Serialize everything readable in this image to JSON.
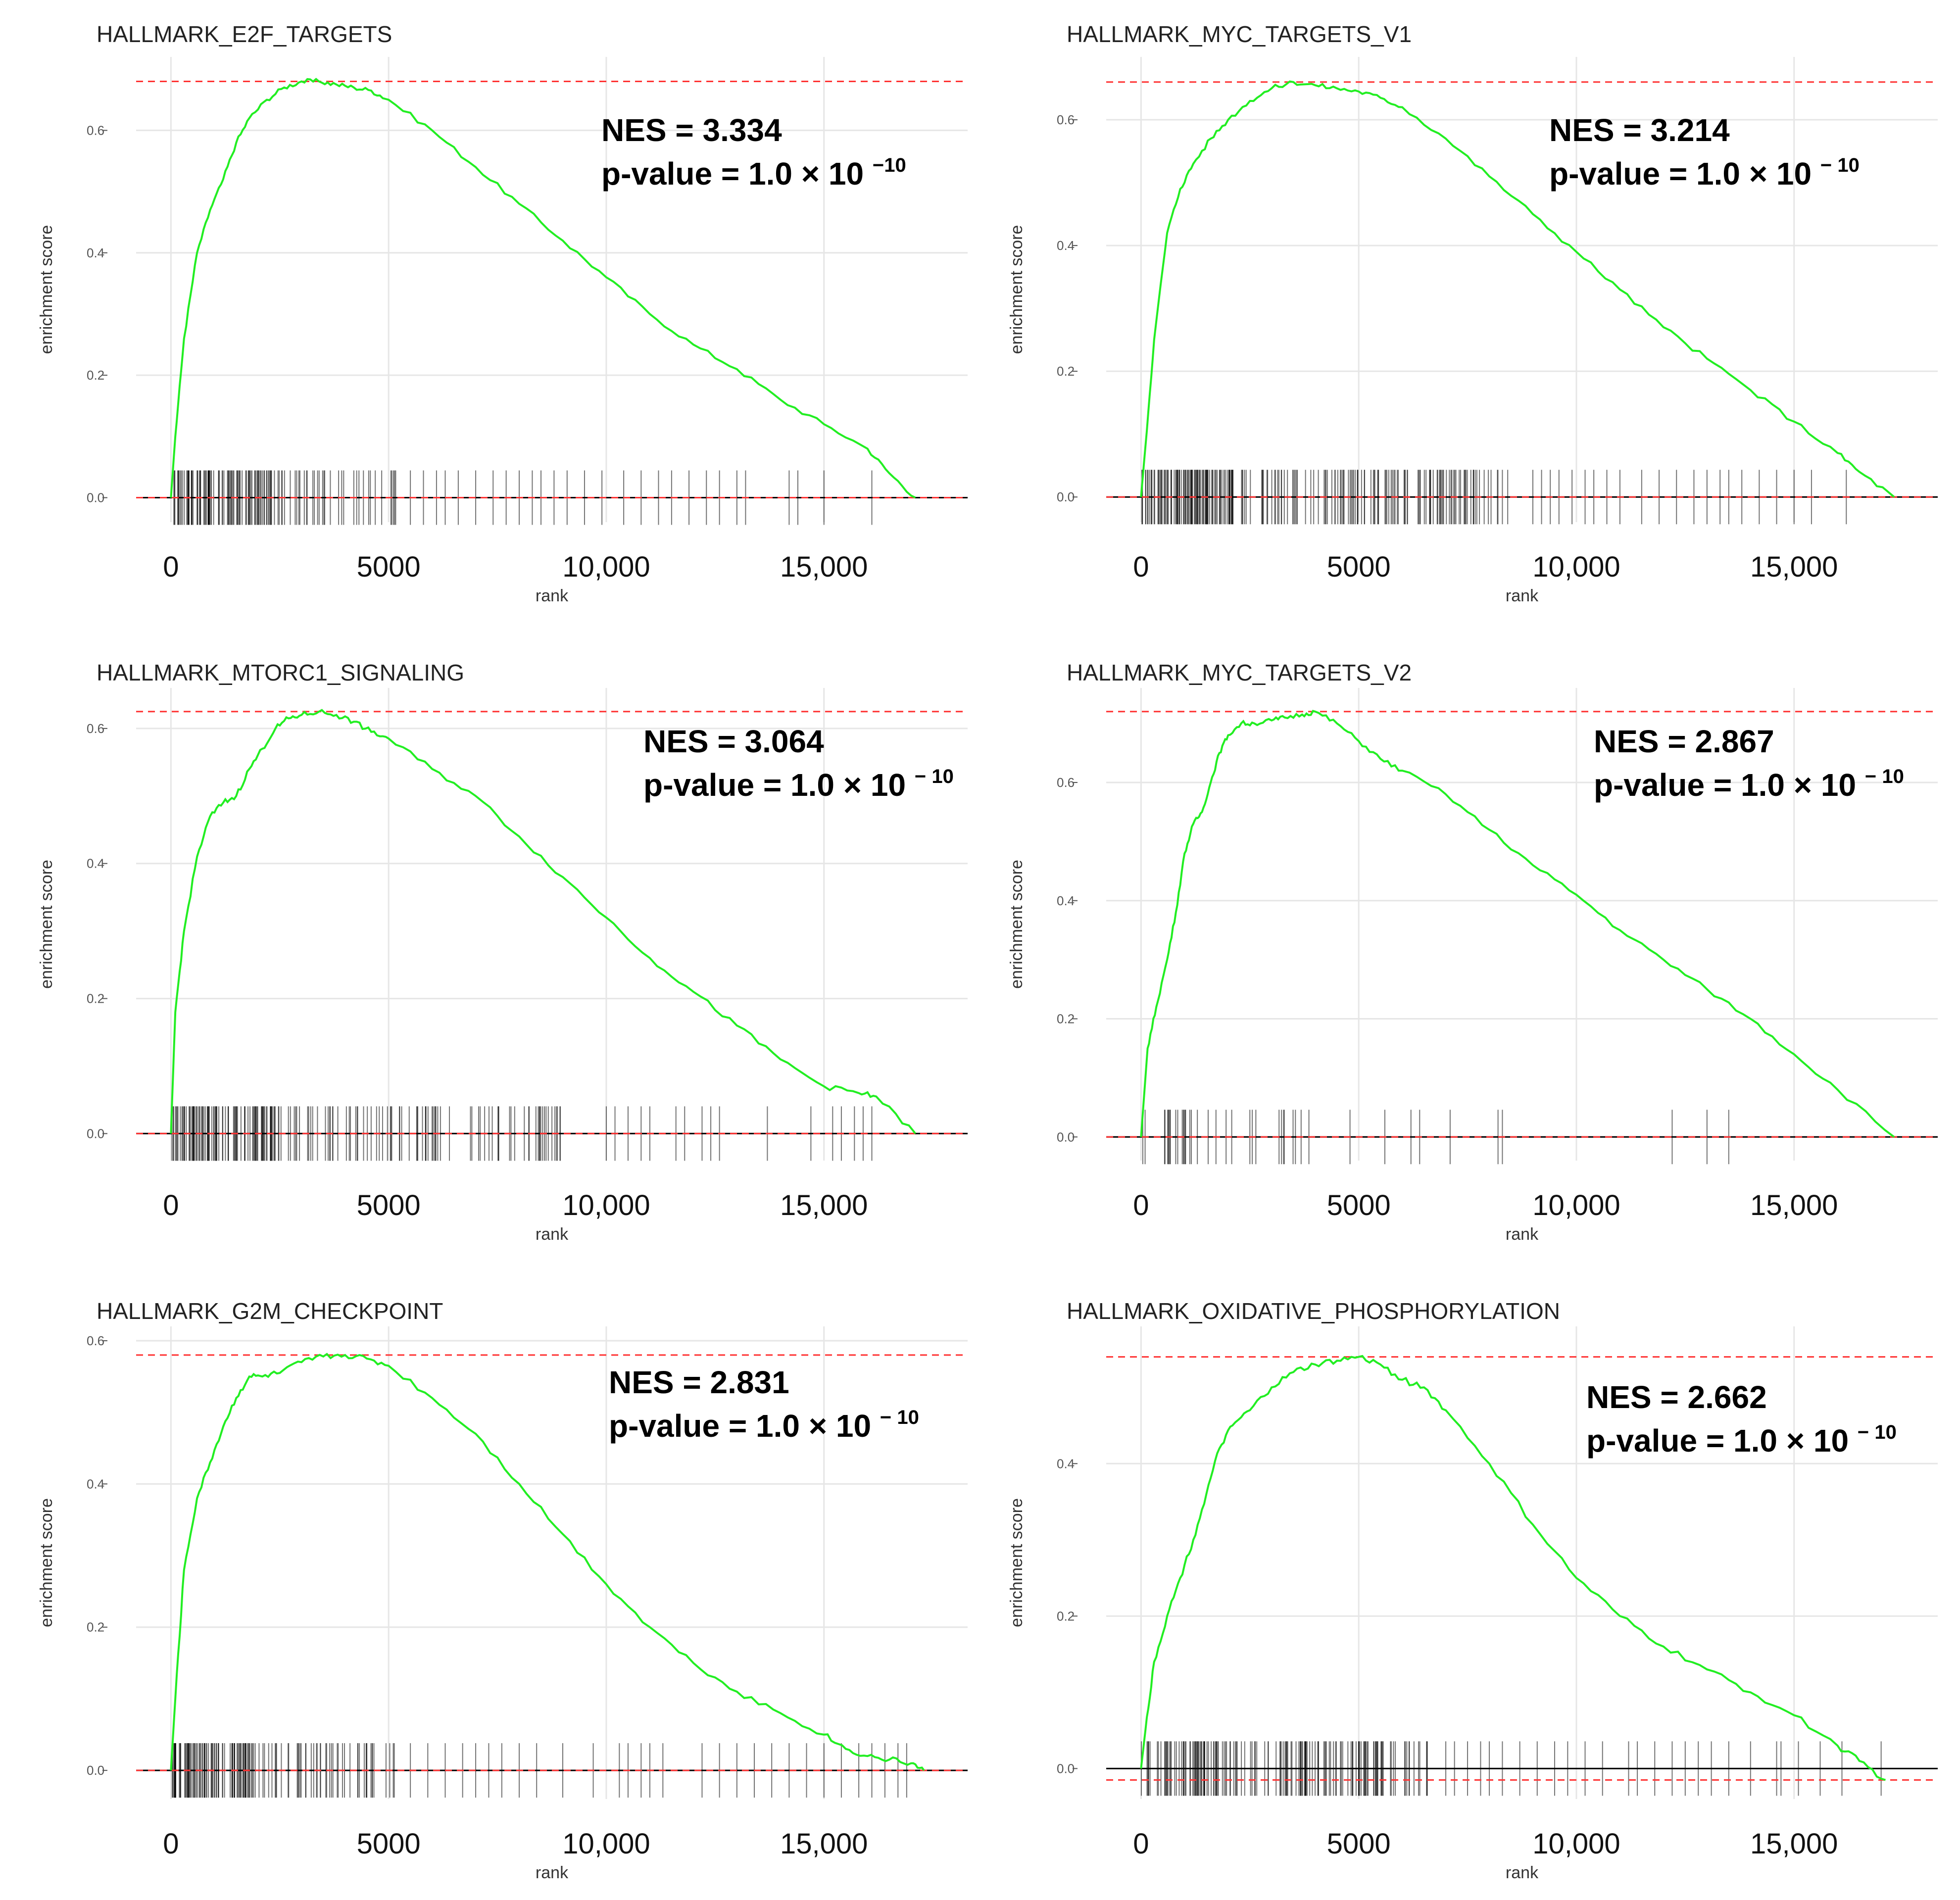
{
  "figure": {
    "xlabel": "rank",
    "ylabel": "enrichment score",
    "x_ticks": [
      0,
      5000,
      10000,
      15000
    ],
    "x_tick_labels": [
      "0",
      "5000",
      "10,000",
      "15,000"
    ],
    "curve_color": "#22ee22",
    "max_line_color": "#ff3333",
    "tick_color": "#000000"
  },
  "chart_data": [
    {
      "type": "line",
      "title": "HALLMARK_E2F_TARGETS",
      "xlabel": "rank",
      "ylabel": "enrichment score",
      "xlim": [
        -800,
        18300
      ],
      "ylim": [
        -0.04,
        0.72
      ],
      "y_ticks": [
        0.0,
        0.2,
        0.4,
        0.6
      ],
      "y_tick_labels": [
        "0.0",
        "0.2",
        "0.4",
        "0.6"
      ],
      "max_es": 0.68,
      "min_es": 0.0,
      "nes_text": "NES = 3.334",
      "pvalue_text": "p-value = 1.0 × 10",
      "pvalue_exp": "−10",
      "curve": {
        "x": [
          0,
          100,
          300,
          600,
          900,
          1200,
          1500,
          1800,
          2200,
          2600,
          3000,
          3400,
          3800,
          4200,
          4600,
          5000,
          6000,
          7000,
          8000,
          9000,
          10000,
          11000,
          12000,
          13000,
          14000,
          15000,
          16000,
          16500,
          17100
        ],
        "y": [
          0.0,
          0.1,
          0.26,
          0.4,
          0.47,
          0.52,
          0.58,
          0.62,
          0.65,
          0.67,
          0.68,
          0.68,
          0.675,
          0.67,
          0.665,
          0.65,
          0.6,
          0.54,
          0.48,
          0.42,
          0.36,
          0.3,
          0.25,
          0.21,
          0.16,
          0.12,
          0.08,
          0.04,
          0.0
        ]
      },
      "hits": {
        "dense": {
          "start": 0,
          "end": 2200,
          "count": 90
        },
        "mid": {
          "start": 2200,
          "end": 5200,
          "count": 45
        },
        "sparse": [
          5500,
          5800,
          6100,
          6300,
          6600,
          7000,
          7400,
          7700,
          8000,
          8300,
          8500,
          8800,
          9100,
          9500,
          9900,
          10400,
          10800,
          11200,
          11500,
          11900,
          12300,
          12600,
          13000,
          13200,
          14200,
          14400,
          15000,
          16100
        ]
      }
    },
    {
      "type": "line",
      "title": "HALLMARK_MYC_TARGETS_V1",
      "xlabel": "rank",
      "ylabel": "enrichment score",
      "xlim": [
        -800,
        18300
      ],
      "ylim": [
        -0.04,
        0.7
      ],
      "y_ticks": [
        0.0,
        0.2,
        0.4,
        0.6
      ],
      "y_tick_labels": [
        "0.0",
        "0.2",
        "0.4",
        "0.6"
      ],
      "max_es": 0.66,
      "min_es": 0.0,
      "nes_text": "NES = 3.214",
      "pvalue_text": "p-value = 1.0 × 10",
      "pvalue_exp": "− 10",
      "curve": {
        "x": [
          0,
          100,
          300,
          600,
          900,
          1200,
          1600,
          2000,
          2500,
          3000,
          3500,
          4000,
          4500,
          5000,
          5500,
          6000,
          7000,
          8000,
          9000,
          10000,
          11000,
          12000,
          13000,
          14000,
          15000,
          16000,
          16500,
          17300
        ],
        "y": [
          0.0,
          0.08,
          0.25,
          0.42,
          0.49,
          0.53,
          0.57,
          0.6,
          0.63,
          0.65,
          0.66,
          0.655,
          0.65,
          0.645,
          0.635,
          0.62,
          0.57,
          0.51,
          0.45,
          0.39,
          0.33,
          0.27,
          0.22,
          0.17,
          0.12,
          0.07,
          0.04,
          0.0
        ]
      },
      "hits": {
        "dense": {
          "start": 0,
          "end": 2500,
          "count": 110
        },
        "mid": {
          "start": 2500,
          "end": 8500,
          "count": 120
        },
        "sparse": [
          9000,
          9200,
          9400,
          9600,
          9900,
          10200,
          10400,
          10700,
          11000,
          11500,
          11900,
          12300,
          12700,
          13000,
          13300,
          13500,
          13800,
          14200,
          14600,
          15000,
          15400,
          16200
        ]
      }
    },
    {
      "type": "line",
      "title": "HALLMARK_MTORC1_SIGNALING",
      "xlabel": "rank",
      "ylabel": "enrichment score",
      "xlim": [
        -800,
        18300
      ],
      "ylim": [
        -0.04,
        0.66
      ],
      "y_ticks": [
        0.0,
        0.2,
        0.4,
        0.6
      ],
      "y_tick_labels": [
        "0.0",
        "0.2",
        "0.4",
        "0.6"
      ],
      "max_es": 0.625,
      "min_es": 0.0,
      "nes_text": "NES = 3.064",
      "pvalue_text": "p-value = 1.0 × 10",
      "pvalue_exp": "− 10",
      "curve": {
        "x": [
          0,
          100,
          300,
          600,
          900,
          1200,
          1500,
          1800,
          2100,
          2400,
          2700,
          3000,
          3400,
          3800,
          4200,
          4600,
          5000,
          6000,
          7000,
          8000,
          9000,
          10000,
          11000,
          12000,
          13000,
          14000,
          15000,
          15800,
          16200,
          17100
        ],
        "y": [
          0.0,
          0.18,
          0.3,
          0.41,
          0.47,
          0.49,
          0.5,
          0.54,
          0.57,
          0.6,
          0.615,
          0.62,
          0.625,
          0.62,
          0.61,
          0.595,
          0.585,
          0.54,
          0.5,
          0.44,
          0.38,
          0.32,
          0.26,
          0.21,
          0.16,
          0.11,
          0.07,
          0.06,
          0.055,
          0.0
        ]
      },
      "hits": {
        "dense": {
          "start": 0,
          "end": 2600,
          "count": 100
        },
        "mid": {
          "start": 2600,
          "end": 9000,
          "count": 85
        },
        "sparse": [
          10000,
          10200,
          10500,
          10800,
          11000,
          11600,
          11800,
          12200,
          12400,
          12600,
          13700,
          14700,
          15200,
          15400,
          15700,
          15900,
          16100
        ]
      }
    },
    {
      "type": "line",
      "title": "HALLMARK_MYC_TARGETS_V2",
      "xlabel": "rank",
      "ylabel": "enrichment score",
      "xlim": [
        -800,
        18300
      ],
      "ylim": [
        -0.04,
        0.76
      ],
      "y_ticks": [
        0.0,
        0.2,
        0.4,
        0.6
      ],
      "y_tick_labels": [
        "0.0",
        "0.2",
        "0.4",
        "0.6"
      ],
      "max_es": 0.72,
      "min_es": 0.0,
      "nes_text": "NES = 2.867",
      "pvalue_text": "p-value = 1.0 × 10",
      "pvalue_exp": "− 10",
      "curve": {
        "x": [
          0,
          150,
          350,
          600,
          800,
          1000,
          1200,
          1400,
          1600,
          1800,
          2000,
          2300,
          2600,
          3000,
          3300,
          3700,
          4000,
          4500,
          5000,
          5500,
          6000,
          7000,
          8000,
          9000,
          10000,
          11000,
          12000,
          13000,
          14000,
          15000,
          16000,
          17300
        ],
        "y": [
          0.0,
          0.15,
          0.22,
          0.3,
          0.38,
          0.48,
          0.53,
          0.55,
          0.6,
          0.65,
          0.68,
          0.7,
          0.7,
          0.705,
          0.71,
          0.715,
          0.72,
          0.7,
          0.67,
          0.64,
          0.62,
          0.58,
          0.52,
          0.46,
          0.41,
          0.35,
          0.3,
          0.25,
          0.2,
          0.14,
          0.08,
          0.0
        ]
      },
      "hits": {
        "dense": {
          "start": 0,
          "end": 1700,
          "count": 20
        },
        "mid": {
          "start": 1700,
          "end": 4000,
          "count": 14
        },
        "sparse": [
          4800,
          5600,
          6200,
          6400,
          7100,
          8200,
          8300,
          12200,
          13000,
          13500
        ]
      }
    },
    {
      "type": "line",
      "title": "HALLMARK_G2M_CHECKPOINT",
      "xlabel": "rank",
      "ylabel": "enrichment score",
      "xlim": [
        -800,
        18300
      ],
      "ylim": [
        -0.04,
        0.62
      ],
      "y_ticks": [
        0.0,
        0.2,
        0.4,
        0.6
      ],
      "y_tick_labels": [
        "0.0",
        "0.2",
        "0.4",
        "0.6"
      ],
      "max_es": 0.58,
      "min_es": 0.0,
      "nes_text": "NES = 2.831",
      "pvalue_text": "p-value = 1.0 × 10",
      "pvalue_exp": "− 10",
      "curve": {
        "x": [
          0,
          100,
          300,
          600,
          900,
          1200,
          1500,
          1800,
          2100,
          2500,
          3000,
          3500,
          4000,
          4500,
          5000,
          6000,
          7000,
          8000,
          9000,
          10000,
          11000,
          12000,
          13000,
          14000,
          15000,
          15500,
          16000,
          16500,
          17000,
          17300
        ],
        "y": [
          0.0,
          0.1,
          0.28,
          0.38,
          0.43,
          0.48,
          0.52,
          0.55,
          0.55,
          0.555,
          0.57,
          0.578,
          0.58,
          0.575,
          0.565,
          0.52,
          0.47,
          0.4,
          0.33,
          0.26,
          0.2,
          0.15,
          0.11,
          0.08,
          0.05,
          0.03,
          0.02,
          0.015,
          0.01,
          0.0
        ]
      },
      "hits": {
        "dense": {
          "start": 0,
          "end": 1900,
          "count": 90
        },
        "mid": {
          "start": 1900,
          "end": 5200,
          "count": 50
        },
        "sparse": [
          5500,
          5900,
          6300,
          6700,
          7000,
          7300,
          7600,
          8000,
          8400,
          9000,
          9700,
          10300,
          10500,
          10800,
          11000,
          11300,
          12200,
          12600,
          13000,
          13400,
          13800,
          14200,
          14600,
          15000,
          15400,
          15800,
          16100,
          16400,
          16700,
          16900
        ]
      }
    },
    {
      "type": "line",
      "title": "HALLMARK_OXIDATIVE_PHOSPHORYLATION",
      "xlabel": "rank",
      "ylabel": "enrichment score",
      "xlim": [
        -800,
        18300
      ],
      "ylim": [
        -0.04,
        0.58
      ],
      "y_ticks": [
        0.0,
        0.2,
        0.4
      ],
      "y_tick_labels": [
        "0.0",
        "0.2",
        "0.4"
      ],
      "max_es": 0.54,
      "min_es": -0.015,
      "nes_text": "NES = 2.662",
      "pvalue_text": "p-value = 1.0 × 10",
      "pvalue_exp": "− 10",
      "curve": {
        "x": [
          0,
          100,
          300,
          600,
          900,
          1200,
          1500,
          1800,
          2100,
          2500,
          3000,
          3500,
          4000,
          4500,
          5000,
          5500,
          6000,
          6500,
          7000,
          8000,
          9000,
          10000,
          11000,
          12000,
          13000,
          14000,
          15000,
          16000,
          16500,
          17100
        ],
        "y": [
          0.0,
          0.05,
          0.14,
          0.2,
          0.25,
          0.3,
          0.36,
          0.42,
          0.45,
          0.47,
          0.5,
          0.52,
          0.53,
          0.535,
          0.54,
          0.53,
          0.51,
          0.5,
          0.47,
          0.4,
          0.32,
          0.25,
          0.2,
          0.16,
          0.13,
          0.1,
          0.07,
          0.03,
          0.01,
          -0.015
        ]
      },
      "hits": {
        "dense": {
          "start": 0,
          "end": 3000,
          "count": 80
        },
        "mid": {
          "start": 3000,
          "end": 6600,
          "count": 90
        },
        "sparse": [
          7000,
          7200,
          7500,
          7800,
          8000,
          8300,
          8700,
          9100,
          9500,
          9800,
          10200,
          10600,
          11200,
          11400,
          11800,
          12200,
          12500,
          12800,
          13100,
          13500,
          14000,
          14600,
          14700,
          15100,
          15600,
          16100,
          17000
        ]
      }
    }
  ]
}
